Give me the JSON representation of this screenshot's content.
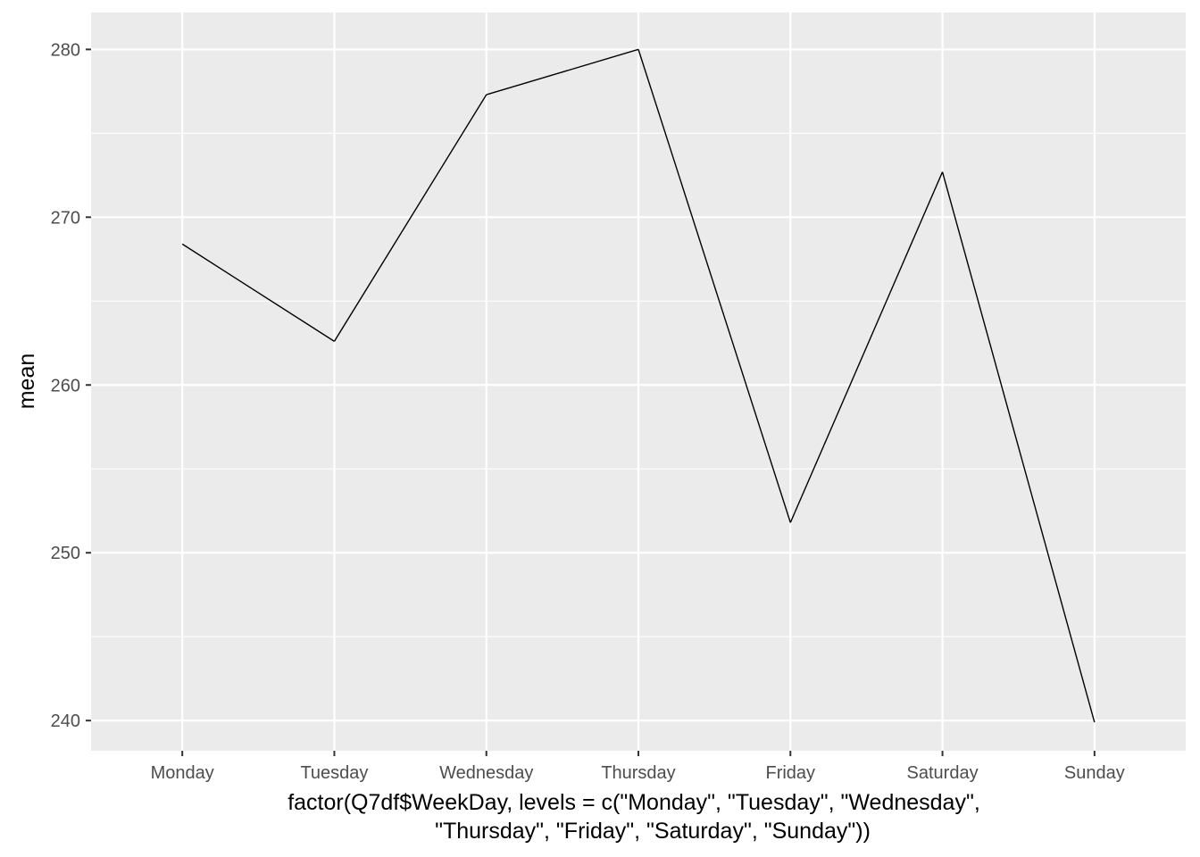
{
  "chart_data": {
    "type": "line",
    "title": "",
    "xlabel_lines": [
      "factor(Q7df$WeekDay, levels = c(\"Monday\", \"Tuesday\", \"Wednesday\",",
      "\"Thursday\", \"Friday\", \"Saturday\", \"Sunday\"))"
    ],
    "ylabel": "mean",
    "categories": [
      "Monday",
      "Tuesday",
      "Wednesday",
      "Thursday",
      "Friday",
      "Saturday",
      "Sunday"
    ],
    "values": [
      268.4,
      262.6,
      277.3,
      280.0,
      251.8,
      272.7,
      239.9
    ],
    "ylim": [
      238.2,
      282.2
    ],
    "y_ticks": [
      240,
      250,
      260,
      270,
      280
    ],
    "grid": true,
    "legend": "none",
    "colors": {
      "panel_bg": "#ebebeb",
      "grid": "#ffffff",
      "line": "#000000",
      "tick_text": "#4d4d4d",
      "tick_mark": "#333333"
    }
  }
}
